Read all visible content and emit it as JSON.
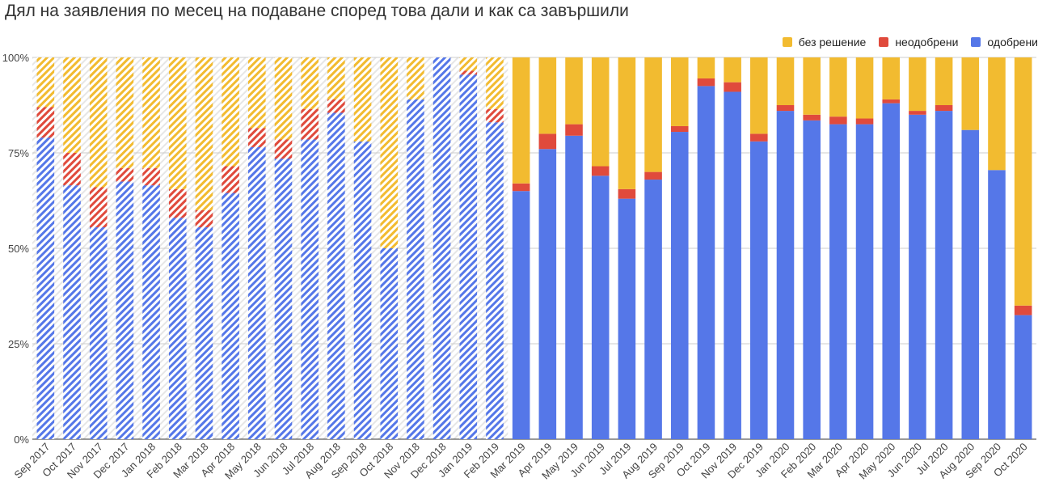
{
  "chart_data": {
    "type": "bar",
    "stacked": true,
    "title": "Дял на заявления по месец на подаване според това дали и как са завършили",
    "xlabel": "",
    "ylabel": "",
    "ylim": [
      0,
      100
    ],
    "y_ticks": [
      "0%",
      "25%",
      "50%",
      "75%",
      "100%"
    ],
    "y_tick_values": [
      0,
      25,
      50,
      75,
      100
    ],
    "grid": true,
    "legend_position": "top-right",
    "legend_order": [
      "без решение",
      "неодобрени",
      "одобрени"
    ],
    "hatched_categories_through": "Feb 2019",
    "categories": [
      "Sep 2017",
      "Oct 2017",
      "Nov 2017",
      "Dec 2017",
      "Jan 2018",
      "Feb 2018",
      "Mar 2018",
      "Apr 2018",
      "May 2018",
      "Jun 2018",
      "Jul 2018",
      "Aug 2018",
      "Sep 2018",
      "Oct 2018",
      "Nov 2018",
      "Dec 2018",
      "Jan 2019",
      "Feb 2019",
      "Mar 2019",
      "Apr 2019",
      "May 2019",
      "Jun 2019",
      "Jul 2019",
      "Aug 2019",
      "Sep 2019",
      "Oct 2019",
      "Nov 2019",
      "Dec 2019",
      "Jan 2020",
      "Feb 2020",
      "Mar 2020",
      "Apr 2020",
      "May 2020",
      "Jun 2020",
      "Jul 2020",
      "Aug 2020",
      "Sep 2020",
      "Oct 2020"
    ],
    "series": [
      {
        "name": "одобрени",
        "color": "#5577e8",
        "values": [
          79,
          66.5,
          55.5,
          67.5,
          66.5,
          58,
          55.5,
          64.5,
          76.5,
          73.5,
          78.5,
          85.5,
          78,
          50,
          89,
          100,
          95.5,
          83,
          65,
          76,
          79.5,
          69,
          63,
          68,
          80.5,
          92.5,
          91,
          78,
          86,
          83.5,
          82.5,
          82.5,
          88,
          85,
          86,
          81,
          70.5,
          32.5
        ]
      },
      {
        "name": "неодобрени",
        "color": "#e04a3c",
        "values": [
          8,
          8.5,
          10.5,
          3.5,
          4.5,
          7.5,
          4.5,
          7,
          5,
          5,
          8,
          3.5,
          0,
          0,
          0,
          0,
          1,
          3.5,
          2,
          4,
          3,
          2.5,
          2.5,
          2,
          1.5,
          2,
          2.5,
          2,
          1.5,
          1.5,
          2,
          1.5,
          1,
          1,
          1.5,
          0,
          0,
          2.5
        ]
      },
      {
        "name": "без решение",
        "color": "#f2bb30",
        "values": [
          13,
          25,
          34,
          29,
          29,
          34.5,
          40,
          28.5,
          18.5,
          21.5,
          13.5,
          11,
          22,
          50,
          11,
          0,
          3.5,
          13.5,
          33,
          20,
          17.5,
          28.5,
          34.5,
          30,
          18,
          5.5,
          6.5,
          20,
          12.5,
          15,
          15.5,
          16,
          11,
          14,
          12.5,
          19,
          29.5,
          65
        ]
      }
    ]
  }
}
